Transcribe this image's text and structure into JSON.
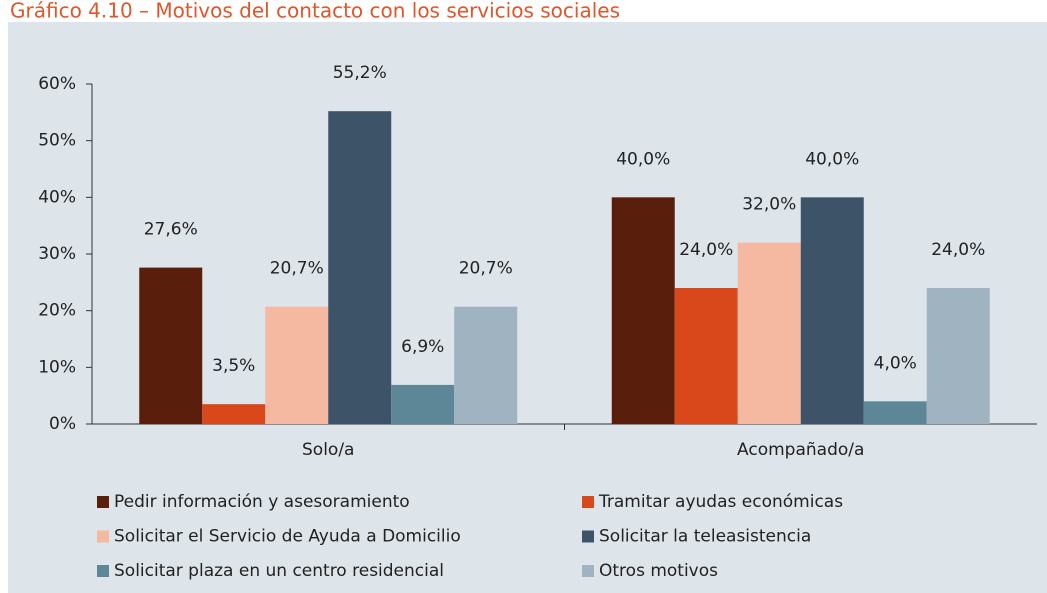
{
  "chart_data": {
    "type": "bar",
    "title": "Gráfico 4.10 – Motivos del contacto con los servicios sociales",
    "categories": [
      "Solo/a",
      "Acompañado/a"
    ],
    "series": [
      {
        "name": "Pedir información y asesoramiento",
        "color": "#5a1e0d",
        "values": [
          27.6,
          40.0
        ],
        "value_labels": [
          "27,6%",
          "40,0%"
        ]
      },
      {
        "name": "Tramitar ayudas económicas",
        "color": "#d9481a",
        "values": [
          3.5,
          24.0
        ],
        "value_labels": [
          "3,5%",
          "24,0%"
        ]
      },
      {
        "name": "Solicitar el Servicio de Ayuda a Domicilio",
        "color": "#f5b8a1",
        "values": [
          20.7,
          32.0
        ],
        "value_labels": [
          "20,7%",
          "32,0%"
        ]
      },
      {
        "name": "Solicitar la teleasistencia",
        "color": "#3d5468",
        "values": [
          55.2,
          40.0
        ],
        "value_labels": [
          "55,2%",
          "40,0%"
        ]
      },
      {
        "name": "Solicitar plaza en un centro residencial",
        "color": "#5d8696",
        "values": [
          6.9,
          4.0
        ],
        "value_labels": [
          "6,9%",
          "4,0%"
        ]
      },
      {
        "name": "Otros motivos",
        "color": "#9fb4c0",
        "values": [
          20.7,
          24.0
        ],
        "value_labels": [
          "20,7%",
          "24,0%"
        ]
      }
    ],
    "ylim": [
      0,
      60
    ],
    "yticks": [
      {
        "value": 0,
        "label": "0%"
      },
      {
        "value": 10,
        "label": "10%"
      },
      {
        "value": 20,
        "label": "20%"
      },
      {
        "value": 30,
        "label": "30%"
      },
      {
        "value": 40,
        "label": "40%"
      },
      {
        "value": 50,
        "label": "50%"
      },
      {
        "value": 60,
        "label": "60%"
      }
    ],
    "grid": false,
    "legend": "bottom"
  }
}
